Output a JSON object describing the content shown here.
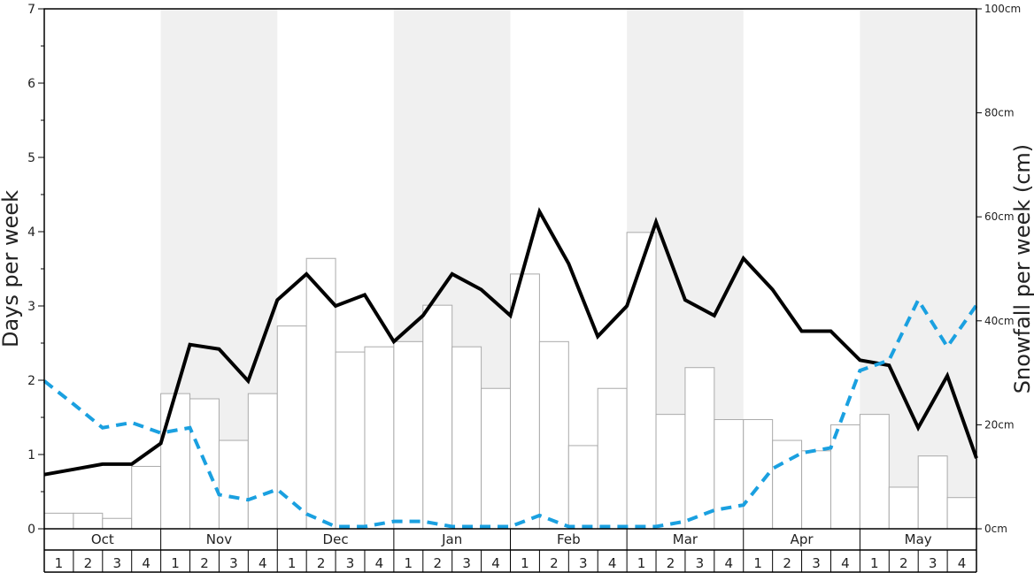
{
  "chart_data": {
    "type": "bar+line",
    "y_left_label": "Days per week",
    "y_right_label": "Snowfall per week (cm)",
    "y_left_range": [
      0,
      7
    ],
    "y_left_ticks": [
      "0",
      "1",
      "2",
      "3",
      "4",
      "5",
      "6",
      "7"
    ],
    "y_right_range_cm": [
      0,
      100
    ],
    "y_right_ticks": [
      "0cm",
      "20cm",
      "40cm",
      "60cm",
      "80cm",
      "100cm"
    ],
    "months": [
      "Oct",
      "Nov",
      "Dec",
      "Jan",
      "Feb",
      "Mar",
      "Apr",
      "May"
    ],
    "week_labels": [
      "1",
      "2",
      "3",
      "4"
    ],
    "shaded_months": [
      "Nov",
      "Jan",
      "Mar",
      "May"
    ],
    "snowfall_cm": [
      3,
      3,
      2,
      12,
      26,
      25,
      17,
      26,
      39,
      52,
      34,
      35,
      36,
      43,
      35,
      27,
      49,
      36,
      16,
      27,
      57,
      22,
      31,
      21,
      21,
      17,
      15,
      20,
      22,
      8,
      14,
      6
    ],
    "snow_days": [
      0.73,
      0.8,
      0.87,
      0.87,
      1.15,
      2.48,
      2.42,
      1.99,
      3.08,
      3.43,
      3.0,
      3.15,
      2.52,
      2.87,
      3.43,
      3.22,
      2.87,
      4.27,
      3.57,
      2.59,
      3.0,
      4.13,
      3.08,
      2.87,
      3.64,
      3.22,
      2.66,
      2.66,
      2.27,
      2.2,
      1.36,
      2.06,
      0.95
    ],
    "rain_days": [
      1.99,
      1.68,
      1.36,
      1.43,
      1.29,
      1.36,
      0.46,
      0.39,
      0.53,
      0.2,
      0.03,
      0.03,
      0.1,
      0.1,
      0.03,
      0.03,
      0.03,
      0.18,
      0.03,
      0.03,
      0.03,
      0.03,
      0.1,
      0.25,
      0.32,
      0.81,
      1.02,
      1.09,
      2.13,
      2.27,
      3.08,
      2.45,
      3.01
    ],
    "colors": {
      "snow_days_line": "#000000",
      "rain_days_line": "#1aa0e0",
      "snowfall_bar_fill": "#ffffff",
      "snowfall_bar_stroke": "#aaaaaa",
      "shaded_month_band": "#f0f0f0",
      "axis": "#000000"
    },
    "grid": false
  }
}
